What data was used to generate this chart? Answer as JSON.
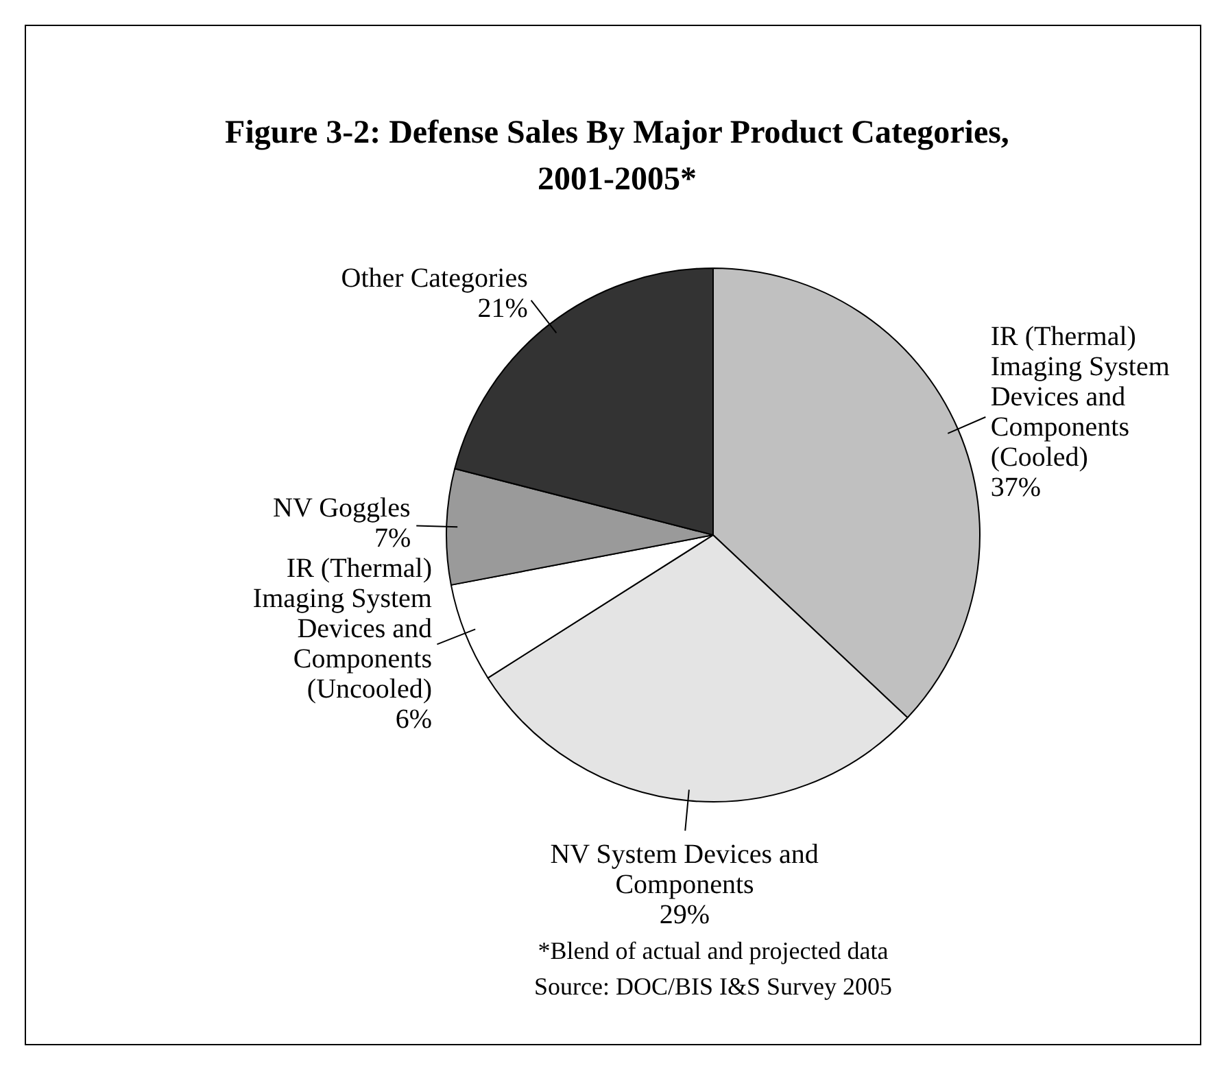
{
  "chart_data": {
    "type": "pie",
    "title": "Figure 3-2: Defense Sales By Major Product Categories, 2001-2005*",
    "categories": [
      "IR (Thermal) Imaging System Devices and Components (Cooled)",
      "NV System Devices and Components",
      "IR (Thermal) Imaging System Devices and Components (Uncooled)",
      "NV Goggles",
      "Other Categories"
    ],
    "values": [
      37,
      29,
      6,
      7,
      21
    ],
    "value_labels": [
      "37%",
      "29%",
      "6%",
      "7%",
      "21%"
    ],
    "colors": [
      "#c0c0c0",
      "#e4e4e4",
      "#ffffff",
      "#9a9a9a",
      "#333333"
    ],
    "annotations": [
      "*Blend of actual and projected data",
      "Source: DOC/BIS I&S Survey 2005"
    ],
    "legend": false
  }
}
